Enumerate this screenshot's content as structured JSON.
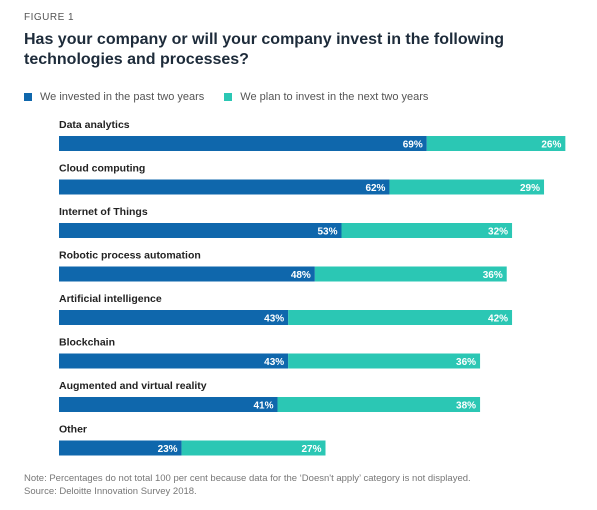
{
  "figure_label": "FIGURE 1",
  "colors": {
    "invested": "#0f67ac",
    "plan": "#2bc7b4"
  },
  "chart_data": {
    "type": "bar",
    "orientation": "horizontal",
    "stacked": true,
    "title": "Has your company or will your company invest in the following technologies and processes?",
    "categories": [
      "Data analytics",
      "Cloud computing",
      "Internet of Things",
      "Robotic process automation",
      "Artificial intelligence",
      "Blockchain",
      "Augmented and virtual reality",
      "Other"
    ],
    "series": [
      {
        "name": "We invested in the past two years",
        "values": [
          69,
          62,
          53,
          48,
          43,
          43,
          41,
          23
        ]
      },
      {
        "name": "We plan to invest in the next two years",
        "values": [
          26,
          29,
          32,
          36,
          42,
          36,
          38,
          27
        ]
      }
    ],
    "value_suffix": "%",
    "legend": "top-left",
    "grid": false
  },
  "notes": [
    "Note: Percentages do not total 100 per cent because data for the ‘Doesn't apply’ category is not displayed.",
    "Source: Deloitte Innovation Survey 2018."
  ]
}
